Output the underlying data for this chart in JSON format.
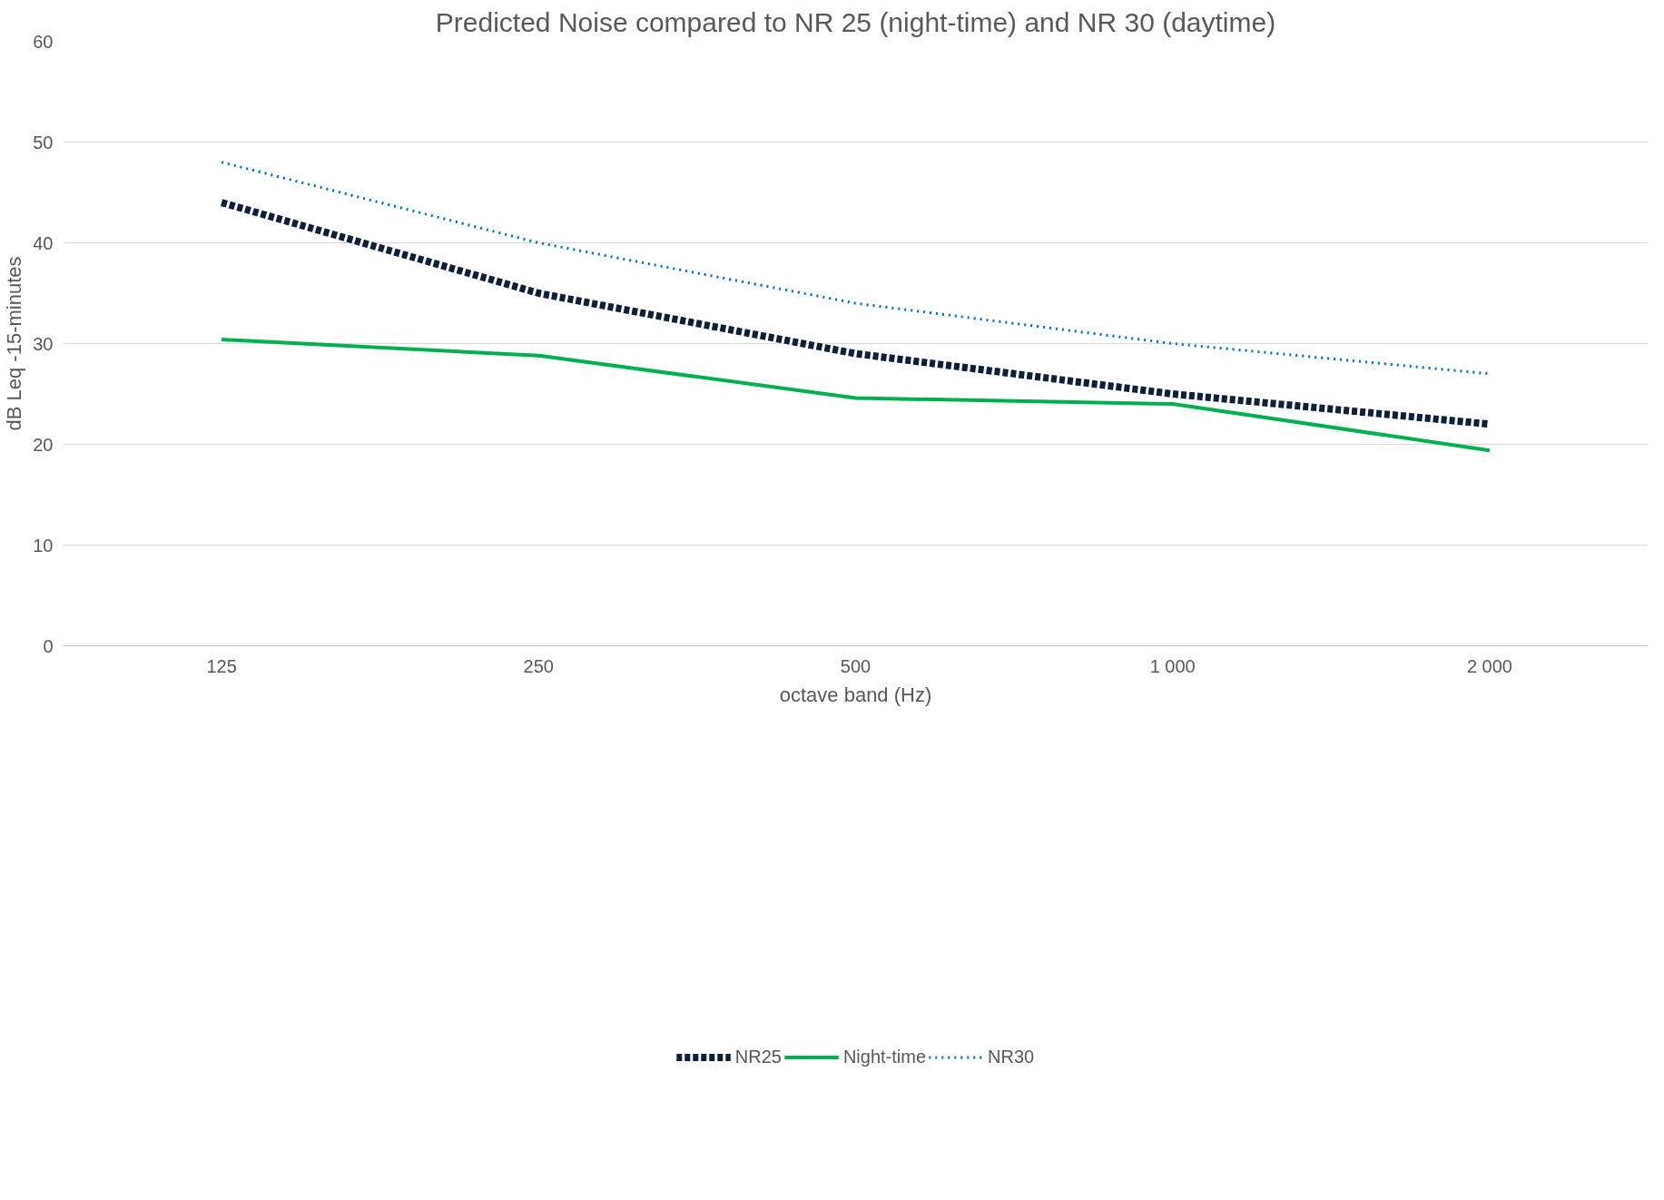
{
  "chart_data": {
    "type": "line",
    "title": "Predicted Noise compared to NR 25 (night-time) and NR 30 (daytime)",
    "xlabel": "octave band (Hz)",
    "ylabel": "dB Leq -15-minutes",
    "categories": [
      "125",
      "250",
      "500",
      "1 000",
      "2 000"
    ],
    "series": [
      {
        "name": "NR25",
        "color": "#0e1f3a",
        "line_style": "dashed",
        "values": [
          44,
          35,
          29,
          25,
          22
        ]
      },
      {
        "name": "Night-time",
        "color": "#00b050",
        "line_style": "solid",
        "values": [
          30.4,
          28.8,
          24.6,
          24.0,
          19.4
        ]
      },
      {
        "name": "NR30",
        "color": "#0070c0",
        "line_style": "dotted",
        "values": [
          48,
          40,
          34,
          30,
          27
        ]
      }
    ],
    "ylim": [
      0,
      60
    ],
    "yticks": [
      0,
      10,
      20,
      30,
      40,
      50,
      60
    ],
    "grid": "y",
    "legend": "bottom",
    "marker": "none"
  }
}
